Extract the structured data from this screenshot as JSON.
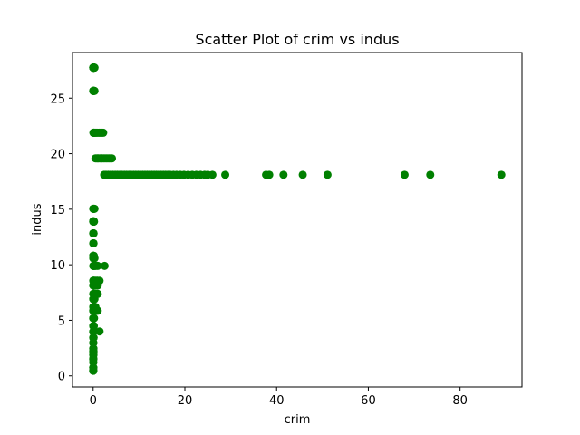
{
  "chart_data": {
    "type": "scatter",
    "title": "Scatter Plot of crim vs indus",
    "xlabel": "crim",
    "ylabel": "indus",
    "xlim": [
      -4.5,
      93.5
    ],
    "ylim": [
      -1.0,
      29.1
    ],
    "xticks": [
      0,
      20,
      40,
      60,
      80
    ],
    "yticks": [
      0,
      5,
      10,
      15,
      20,
      25
    ],
    "grid": false,
    "marker_color": "#008000",
    "series": [
      {
        "x": [
          0.01,
          0.02,
          0.03,
          0.04,
          0.05,
          0.06,
          0.08,
          0.1,
          0.12,
          0.14,
          0.16,
          0.18,
          0.2,
          0.25,
          0.3,
          0.01,
          0.03,
          0.05,
          0.08,
          0.1,
          0.15,
          0.2,
          0.3,
          0.05,
          0.1,
          0.2,
          0.3,
          0.5,
          0.7,
          1.0,
          1.3,
          1.6,
          1.9,
          2.2,
          0.02,
          0.05,
          0.1,
          0.2,
          0.3,
          0.02,
          0.06,
          0.12,
          0.01,
          0.04,
          0.08,
          0.12,
          0.2,
          0.01,
          0.03,
          0.06,
          0.1,
          0.02,
          0.05,
          0.09,
          0.01,
          0.03,
          0.06,
          0.1,
          0.15,
          0.02,
          0.05,
          0.1,
          0.2,
          0.3,
          0.02,
          0.05,
          0.1,
          0.2,
          0.4,
          0.6,
          1.0,
          2.5,
          0.02,
          0.05,
          0.1,
          0.3,
          0.5,
          0.8,
          1.0,
          1.4,
          0.01,
          0.02,
          0.05,
          0.1,
          0.2,
          0.4,
          0.7,
          1.0,
          0.02,
          0.05,
          0.1,
          0.15,
          0.3,
          0.6,
          1.0,
          0.01,
          0.03,
          0.06,
          0.1,
          0.2,
          0.3,
          0.02,
          0.05,
          0.1,
          0.2,
          0.5,
          0.01,
          0.02,
          0.05,
          0.1,
          0.15,
          0.4,
          0.7,
          1.0,
          1.4,
          0.01,
          0.03,
          0.05,
          0.08,
          0.1,
          0.2,
          0.02,
          0.04,
          0.06,
          0.1,
          0.15,
          0.01,
          0.03,
          0.05,
          0.08,
          0.02,
          0.04,
          0.06,
          0.1,
          0.01,
          0.03,
          0.05,
          0.02,
          0.04,
          0.06,
          0.01,
          0.03,
          0.05,
          0.08,
          0.02,
          0.04,
          0.06,
          0.01,
          0.03,
          0.05,
          0.02,
          0.04,
          0.01,
          0.03,
          0.05,
          0.02,
          0.04,
          0.01,
          0.03,
          0.5,
          0.8,
          1.0,
          1.2,
          1.5,
          1.8,
          2.0,
          2.3,
          2.6,
          2.9,
          3.2,
          3.5,
          3.8,
          4.1,
          2.4,
          2.8,
          3.3,
          3.8,
          4.3,
          4.8,
          5.3,
          5.8,
          6.3,
          6.8,
          7.3,
          7.8,
          8.3,
          8.8,
          9.3,
          9.8,
          10.3,
          10.8,
          11.3,
          11.8,
          12.3,
          12.8,
          13.3,
          13.8,
          14.3,
          14.8,
          15.3,
          15.8,
          16.3,
          16.8,
          17.5,
          18.2,
          19.0,
          19.8,
          20.7,
          21.6,
          22.5,
          23.4,
          24.3,
          25.0,
          26.0,
          28.8,
          37.7,
          38.4,
          41.5,
          45.7,
          51.1,
          67.9,
          73.5,
          89.0
        ],
        "y": [
          27.74,
          27.74,
          27.74,
          27.74,
          27.74,
          27.74,
          27.74,
          27.74,
          27.74,
          27.74,
          27.74,
          27.74,
          27.74,
          27.74,
          27.74,
          25.65,
          25.65,
          25.65,
          25.65,
          25.65,
          25.65,
          25.65,
          25.65,
          21.89,
          21.89,
          21.89,
          21.89,
          21.89,
          21.89,
          21.89,
          21.89,
          21.89,
          21.89,
          21.89,
          15.04,
          15.04,
          15.04,
          15.04,
          15.04,
          13.92,
          13.92,
          13.92,
          13.89,
          13.89,
          13.89,
          13.89,
          13.89,
          12.83,
          12.83,
          12.83,
          12.83,
          11.93,
          11.93,
          11.93,
          10.81,
          10.81,
          10.81,
          10.81,
          10.81,
          10.59,
          10.59,
          10.59,
          10.59,
          10.59,
          9.9,
          9.9,
          9.9,
          9.9,
          9.9,
          9.9,
          9.9,
          9.9,
          8.56,
          8.56,
          8.56,
          8.56,
          8.56,
          8.56,
          8.56,
          8.56,
          8.14,
          8.14,
          8.14,
          8.14,
          8.14,
          8.14,
          8.14,
          8.14,
          7.38,
          7.38,
          7.38,
          7.38,
          7.38,
          7.38,
          7.38,
          6.91,
          6.91,
          6.91,
          6.91,
          6.91,
          6.91,
          6.2,
          6.2,
          6.2,
          6.2,
          6.2,
          5.86,
          5.86,
          5.86,
          5.86,
          5.86,
          5.86,
          5.86,
          5.86,
          4.0,
          5.19,
          5.19,
          5.19,
          5.19,
          5.19,
          5.19,
          4.49,
          4.49,
          4.49,
          4.49,
          4.49,
          3.97,
          3.97,
          3.97,
          3.97,
          3.44,
          3.44,
          3.44,
          3.44,
          2.97,
          2.97,
          2.97,
          2.46,
          2.46,
          2.46,
          2.18,
          2.18,
          2.18,
          2.18,
          1.89,
          1.89,
          1.89,
          1.52,
          1.52,
          1.52,
          1.22,
          1.22,
          0.74,
          0.74,
          0.74,
          0.46,
          0.46,
          0.46,
          0.46,
          19.58,
          19.58,
          19.58,
          19.58,
          19.58,
          19.58,
          19.58,
          19.58,
          19.58,
          19.58,
          19.58,
          19.58,
          19.58,
          19.58,
          18.1,
          18.1,
          18.1,
          18.1,
          18.1,
          18.1,
          18.1,
          18.1,
          18.1,
          18.1,
          18.1,
          18.1,
          18.1,
          18.1,
          18.1,
          18.1,
          18.1,
          18.1,
          18.1,
          18.1,
          18.1,
          18.1,
          18.1,
          18.1,
          18.1,
          18.1,
          18.1,
          18.1,
          18.1,
          18.1,
          18.1,
          18.1,
          18.1,
          18.1,
          18.1,
          18.1,
          18.1,
          18.1,
          18.1,
          18.1,
          18.1,
          18.1,
          18.1,
          18.1,
          18.1,
          18.1,
          18.1,
          18.1,
          18.1,
          18.1
        ]
      }
    ]
  }
}
